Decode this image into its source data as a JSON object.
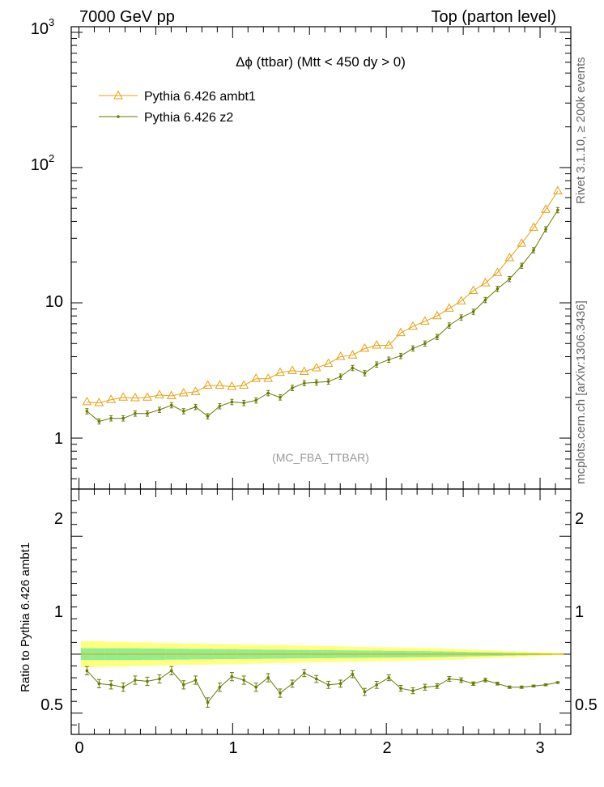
{
  "header": {
    "left": "7000 GeV pp",
    "right": "Top (parton level)"
  },
  "side_labels": {
    "rivet": "Rivet 3.1.10, ≥ 200k events",
    "mcplots": "mcplots.cern.ch [arXiv:1306.3436]"
  },
  "colors": {
    "ambt1": "#e8a010",
    "z2": "#6b7a00",
    "band_inner": "#90ee90",
    "band_outer": "#ffff80"
  },
  "chart_data": [
    {
      "type": "line",
      "title": "Δϕ (ttbar) (Mtt < 450 dy > 0)",
      "analysis_label": "(MC_FBA_TTBAR)",
      "yscale": "log",
      "ylim": [
        0.42,
        1100
      ],
      "xlim": [
        -0.05,
        3.2
      ],
      "y_tick_labels": [
        "1",
        "10",
        "10^2",
        "10^3"
      ],
      "legend_position": "top-left",
      "x": [
        0.052,
        0.131,
        0.209,
        0.288,
        0.366,
        0.445,
        0.524,
        0.602,
        0.681,
        0.759,
        0.838,
        0.916,
        0.995,
        1.073,
        1.152,
        1.231,
        1.309,
        1.388,
        1.466,
        1.545,
        1.623,
        1.702,
        1.78,
        1.859,
        1.937,
        2.016,
        2.094,
        2.173,
        2.251,
        2.33,
        2.409,
        2.487,
        2.566,
        2.644,
        2.723,
        2.801,
        2.88,
        2.958,
        3.037,
        3.115
      ],
      "series": [
        {
          "name": "Pythia 6.426 ambt1",
          "marker": "open-triangle",
          "values": [
            1.85,
            1.82,
            1.92,
            2.0,
            1.98,
            2.0,
            2.08,
            2.05,
            2.15,
            2.2,
            2.45,
            2.45,
            2.4,
            2.45,
            2.75,
            2.75,
            3.05,
            3.15,
            3.1,
            3.3,
            3.55,
            4.0,
            4.1,
            4.6,
            4.85,
            4.85,
            6.0,
            6.7,
            7.3,
            8.0,
            9.1,
            10.3,
            12.3,
            14.0,
            16.7,
            21.5,
            27.5,
            36.0,
            49.0,
            67.0
          ]
        },
        {
          "name": "Pythia 6.426 z2",
          "marker": "small-dot",
          "values": [
            1.58,
            1.33,
            1.4,
            1.4,
            1.52,
            1.52,
            1.62,
            1.75,
            1.58,
            1.7,
            1.45,
            1.72,
            1.85,
            1.82,
            1.9,
            2.15,
            2.0,
            2.35,
            2.55,
            2.58,
            2.62,
            2.85,
            3.3,
            3.02,
            3.5,
            3.8,
            4.05,
            4.6,
            5.0,
            5.6,
            6.8,
            7.8,
            8.6,
            10.5,
            12.7,
            15.0,
            18.8,
            24.5,
            35.0,
            48.5
          ]
        }
      ]
    },
    {
      "type": "line",
      "ylabel": "Ratio to Pythia 6.426 ambt1",
      "ylim": [
        0.32,
        2.4
      ],
      "xlim": [
        -0.05,
        3.2
      ],
      "y_tick_labels": [
        "0.5",
        "1",
        "2"
      ],
      "x_tick_labels": [
        "0",
        "1",
        "2",
        "3"
      ],
      "reference": 1.0,
      "band_inner_halfwidth": [
        0.05,
        0.05,
        0.05,
        0.05,
        0.05,
        0.048,
        0.048,
        0.046,
        0.046,
        0.044,
        0.044,
        0.042,
        0.042,
        0.04,
        0.04,
        0.038,
        0.038,
        0.036,
        0.036,
        0.034,
        0.034,
        0.032,
        0.032,
        0.03,
        0.03,
        0.028,
        0.028,
        0.026,
        0.026,
        0.024,
        0.022,
        0.02,
        0.018,
        0.016,
        0.014,
        0.012,
        0.01,
        0.008,
        0.006,
        0.004
      ],
      "band_outer_halfwidth": [
        0.11,
        0.11,
        0.105,
        0.105,
        0.1,
        0.1,
        0.095,
        0.095,
        0.09,
        0.09,
        0.088,
        0.086,
        0.084,
        0.082,
        0.08,
        0.078,
        0.076,
        0.074,
        0.072,
        0.07,
        0.068,
        0.066,
        0.064,
        0.062,
        0.06,
        0.058,
        0.056,
        0.054,
        0.052,
        0.05,
        0.046,
        0.042,
        0.038,
        0.034,
        0.03,
        0.026,
        0.022,
        0.018,
        0.014,
        0.01
      ],
      "series": [
        {
          "name": "Pythia 6.426 z2",
          "values": [
            0.86,
            0.75,
            0.74,
            0.72,
            0.78,
            0.77,
            0.79,
            0.86,
            0.74,
            0.78,
            0.59,
            0.72,
            0.81,
            0.78,
            0.72,
            0.8,
            0.67,
            0.75,
            0.84,
            0.79,
            0.74,
            0.75,
            0.83,
            0.68,
            0.74,
            0.8,
            0.71,
            0.69,
            0.72,
            0.73,
            0.79,
            0.78,
            0.75,
            0.78,
            0.75,
            0.72,
            0.72,
            0.73,
            0.74,
            0.76
          ],
          "errors": [
            0.035,
            0.035,
            0.035,
            0.035,
            0.035,
            0.035,
            0.035,
            0.035,
            0.035,
            0.035,
            0.04,
            0.035,
            0.035,
            0.035,
            0.035,
            0.035,
            0.035,
            0.03,
            0.03,
            0.03,
            0.03,
            0.03,
            0.03,
            0.03,
            0.03,
            0.025,
            0.025,
            0.025,
            0.025,
            0.02,
            0.02,
            0.02,
            0.015,
            0.015,
            0.012,
            0.01,
            0.01,
            0.008,
            0.008,
            0.006
          ]
        }
      ]
    }
  ]
}
